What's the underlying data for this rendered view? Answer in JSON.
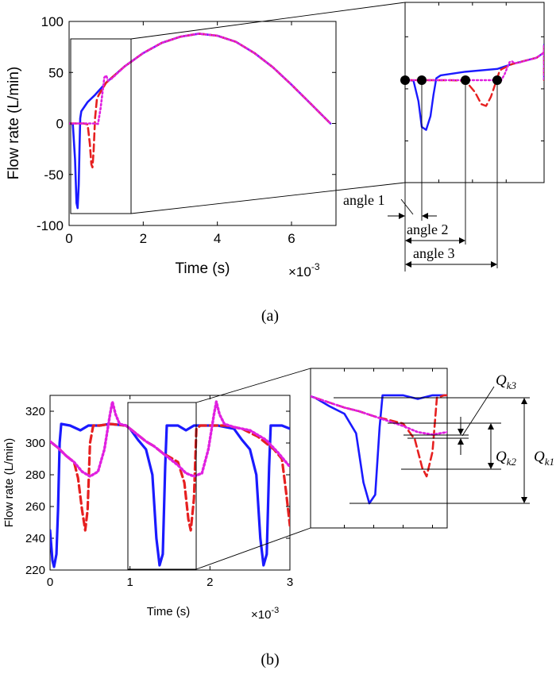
{
  "chart_data": [
    {
      "panel": "a",
      "caption": "(a)",
      "type": "line",
      "xlabel": "Time (s)",
      "x_multiplier": "×10^-3",
      "ylabel": "Flow rate (L/min)",
      "xlim": [
        0,
        7.2
      ],
      "ylim": [
        -100,
        100
      ],
      "x_ticks": [
        "0",
        "2",
        "4",
        "6"
      ],
      "y_ticks": [
        "-100",
        "-50",
        "0",
        "50",
        "100"
      ],
      "series": [
        {
          "color": "#1a1aff",
          "style": "solid",
          "points": [
            [
              0,
              0
            ],
            [
              0.1,
              -0.5
            ],
            [
              0.16,
              -35
            ],
            [
              0.2,
              -78
            ],
            [
              0.23,
              -83
            ],
            [
              0.26,
              -60
            ],
            [
              0.28,
              -25
            ],
            [
              0.3,
              5
            ],
            [
              0.33,
              12
            ],
            [
              0.5,
              21
            ],
            [
              0.7,
              28
            ],
            [
              1.0,
              40
            ],
            [
              1.5,
              56
            ],
            [
              2,
              69
            ],
            [
              2.5,
              79
            ],
            [
              3,
              85
            ],
            [
              3.5,
              88
            ],
            [
              4,
              86
            ],
            [
              4.5,
              80
            ],
            [
              5,
              69
            ],
            [
              5.5,
              55
            ],
            [
              6,
              38
            ],
            [
              6.5,
              20
            ],
            [
              7.05,
              0
            ]
          ]
        },
        {
          "color": "#e62020",
          "style": "dashed",
          "points": [
            [
              0,
              0
            ],
            [
              0.4,
              0
            ],
            [
              0.5,
              -1
            ],
            [
              0.56,
              -20
            ],
            [
              0.6,
              -40
            ],
            [
              0.63,
              -43
            ],
            [
              0.66,
              -28
            ],
            [
              0.7,
              5
            ],
            [
              0.75,
              24
            ],
            [
              0.8,
              28
            ],
            [
              1.0,
              40
            ],
            [
              1.5,
              56
            ],
            [
              2,
              69
            ],
            [
              2.5,
              79
            ],
            [
              3,
              85
            ],
            [
              3.5,
              88
            ],
            [
              4,
              86
            ],
            [
              4.5,
              80
            ],
            [
              5,
              69
            ],
            [
              5.5,
              55
            ],
            [
              6,
              38
            ],
            [
              6.5,
              20
            ],
            [
              7.05,
              0
            ]
          ]
        },
        {
          "color": "#e020e0",
          "style": "dotted",
          "points": [
            [
              0,
              0
            ],
            [
              0.7,
              0
            ],
            [
              0.78,
              -0.5
            ],
            [
              0.85,
              15
            ],
            [
              0.9,
              30
            ],
            [
              0.95,
              45
            ],
            [
              1.0,
              47
            ],
            [
              1.05,
              42
            ],
            [
              1.15,
              44
            ],
            [
              1.5,
              56
            ],
            [
              2,
              69
            ],
            [
              2.5,
              79
            ],
            [
              3,
              85
            ],
            [
              3.5,
              88
            ],
            [
              4,
              86
            ],
            [
              4.5,
              80
            ],
            [
              5,
              69
            ],
            [
              5.5,
              55
            ],
            [
              6,
              38
            ],
            [
              6.5,
              20
            ],
            [
              7.05,
              0
            ]
          ]
        }
      ],
      "zoom_annotations": [
        "angle 1",
        "angle 2",
        "angle 3"
      ]
    },
    {
      "panel": "b",
      "caption": "(b)",
      "type": "line",
      "xlabel": "Time (s)",
      "x_multiplier": "×10^-3",
      "ylabel": "Flow rate (L/min)",
      "xlim": [
        0,
        3
      ],
      "ylim": [
        220,
        330
      ],
      "x_ticks": [
        "0",
        "1",
        "2",
        "3"
      ],
      "y_ticks": [
        "220",
        "240",
        "260",
        "280",
        "300",
        "320"
      ],
      "series": [
        {
          "color": "#1a1aff",
          "style": "solid",
          "points": [
            [
              0,
              245
            ],
            [
              0.03,
              226
            ],
            [
              0.05,
              222
            ],
            [
              0.08,
              230
            ],
            [
              0.1,
              258
            ],
            [
              0.12,
              300
            ],
            [
              0.14,
              312
            ],
            [
              0.25,
              311
            ],
            [
              0.38,
              308
            ],
            [
              0.48,
              311
            ],
            [
              0.62,
              311
            ],
            [
              0.75,
              312
            ],
            [
              0.95,
              311
            ],
            [
              1.0,
              309
            ],
            [
              1.1,
              302
            ],
            [
              1.2,
              296
            ],
            [
              1.28,
              280
            ],
            [
              1.33,
              240
            ],
            [
              1.37,
              223
            ],
            [
              1.41,
              230
            ],
            [
              1.44,
              285
            ],
            [
              1.46,
              311
            ],
            [
              1.6,
              311
            ],
            [
              1.7,
              308
            ],
            [
              1.8,
              311
            ],
            [
              1.95,
              311
            ],
            [
              2.1,
              311
            ],
            [
              2.3,
              309
            ],
            [
              2.4,
              302
            ],
            [
              2.5,
              296
            ],
            [
              2.58,
              280
            ],
            [
              2.63,
              240
            ],
            [
              2.67,
              223
            ],
            [
              2.71,
              230
            ],
            [
              2.74,
              285
            ],
            [
              2.76,
              311
            ],
            [
              2.9,
              311
            ],
            [
              3,
              309
            ]
          ]
        },
        {
          "color": "#e62020",
          "style": "dashed",
          "points": [
            [
              0,
              301
            ],
            [
              0.1,
              297
            ],
            [
              0.2,
              292
            ],
            [
              0.3,
              288
            ],
            [
              0.35,
              278
            ],
            [
              0.4,
              258
            ],
            [
              0.44,
              245
            ],
            [
              0.47,
              258
            ],
            [
              0.5,
              300
            ],
            [
              0.54,
              311
            ],
            [
              0.62,
              311
            ],
            [
              0.75,
              312
            ],
            [
              0.95,
              311
            ],
            [
              1.0,
              309
            ],
            [
              1.1,
              305
            ],
            [
              1.2,
              301
            ],
            [
              1.3,
              298
            ],
            [
              1.4,
              294
            ],
            [
              1.5,
              291
            ],
            [
              1.6,
              288
            ],
            [
              1.68,
              275
            ],
            [
              1.73,
              252
            ],
            [
              1.76,
              245
            ],
            [
              1.8,
              265
            ],
            [
              1.83,
              309
            ],
            [
              1.88,
              311
            ],
            [
              2.0,
              311
            ],
            [
              2.2,
              311
            ],
            [
              2.4,
              309
            ],
            [
              2.6,
              304
            ],
            [
              2.8,
              296
            ],
            [
              2.9,
              290
            ],
            [
              2.95,
              270
            ],
            [
              3,
              248
            ]
          ]
        },
        {
          "color": "#e020e0",
          "style": "dotted",
          "points": [
            [
              0,
              301
            ],
            [
              0.1,
              297
            ],
            [
              0.2,
              292
            ],
            [
              0.3,
              288
            ],
            [
              0.4,
              282
            ],
            [
              0.5,
              279
            ],
            [
              0.6,
              282
            ],
            [
              0.68,
              296
            ],
            [
              0.75,
              318
            ],
            [
              0.78,
              326
            ],
            [
              0.82,
              318
            ],
            [
              0.87,
              312
            ],
            [
              0.95,
              311
            ],
            [
              1.0,
              309
            ],
            [
              1.1,
              305
            ],
            [
              1.2,
              301
            ],
            [
              1.3,
              298
            ],
            [
              1.4,
              294
            ],
            [
              1.5,
              290
            ],
            [
              1.6,
              286
            ],
            [
              1.7,
              281
            ],
            [
              1.8,
              279
            ],
            [
              1.9,
              281
            ],
            [
              1.98,
              296
            ],
            [
              2.05,
              318
            ],
            [
              2.08,
              326
            ],
            [
              2.12,
              318
            ],
            [
              2.18,
              312
            ],
            [
              2.3,
              310
            ],
            [
              2.5,
              308
            ],
            [
              2.7,
              302
            ],
            [
              2.85,
              294
            ],
            [
              2.95,
              288
            ],
            [
              3,
              285
            ]
          ]
        }
      ],
      "zoom_annotations": [
        "Q_k3",
        "Q_k2",
        "Q_k1"
      ]
    }
  ],
  "labels": {
    "a_xlabel": "Time (s)",
    "a_ylabel": "Flow rate (L/min)",
    "a_mult_base": "×10",
    "a_mult_exp": "-3",
    "b_xlabel": "Time (s)",
    "b_ylabel": "Flow rate (L/min)",
    "b_mult_base": "×10",
    "b_mult_exp": "-3",
    "angle1": "angle 1",
    "angle2": "angle 2",
    "angle3": "angle 3",
    "q_sym": "Q",
    "qk3_sub": "k3",
    "qk2_sub": "k2",
    "qk1_sub": "k1",
    "cap_a": "(a)",
    "cap_b": "(b)"
  },
  "colors": {
    "blue": "#1a1aff",
    "red": "#e62020",
    "magenta": "#e020e0"
  }
}
